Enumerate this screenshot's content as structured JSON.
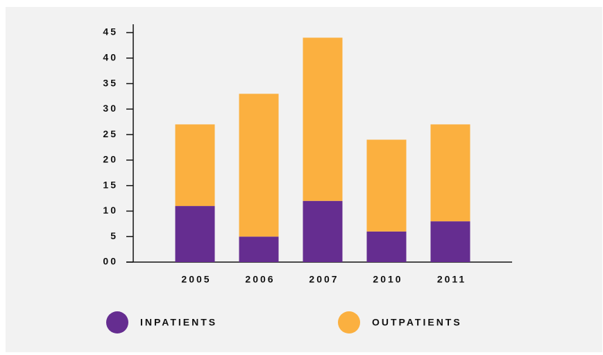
{
  "chart_data": {
    "type": "stacked_bar",
    "categories": [
      "2005",
      "2006",
      "2007",
      "2010",
      "2011"
    ],
    "series": [
      {
        "name": "INPATIENTS",
        "color": "#652d90",
        "values": [
          11,
          5,
          12,
          6,
          8
        ]
      },
      {
        "name": "OUTPATIENTS",
        "color": "#fbb040",
        "values": [
          16,
          28,
          32,
          18,
          19
        ]
      }
    ],
    "ylim": [
      0,
      45
    ],
    "yticks": [
      {
        "value": 0,
        "label": "00"
      },
      5,
      10,
      15,
      20,
      25,
      30,
      35,
      40,
      45
    ]
  }
}
